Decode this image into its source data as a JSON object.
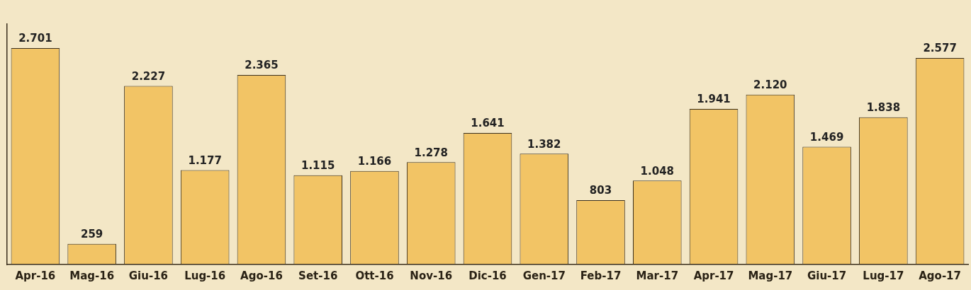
{
  "chart_data": {
    "type": "bar",
    "categories": [
      "Apr-16",
      "Mag-16",
      "Giu-16",
      "Lug-16",
      "Ago-16",
      "Set-16",
      "Ott-16",
      "Nov-16",
      "Dic-16",
      "Gen-17",
      "Feb-17",
      "Mar-17",
      "Apr-17",
      "Mag-17",
      "Giu-17",
      "Lug-17",
      "Ago-17"
    ],
    "values": [
      2701,
      259,
      2227,
      1177,
      2365,
      1115,
      1166,
      1278,
      1641,
      1382,
      803,
      1048,
      1941,
      2120,
      1469,
      1838,
      2577
    ],
    "value_labels": [
      "2.701",
      "259",
      "2.227",
      "1.177",
      "2.365",
      "1.115",
      "1.166",
      "1.278",
      "1.641",
      "1.382",
      "803",
      "1.048",
      "1.941",
      "2.120",
      "1.469",
      "1.838",
      "2.577"
    ],
    "color": "#f2c465",
    "grid": false,
    "legend": false
  }
}
